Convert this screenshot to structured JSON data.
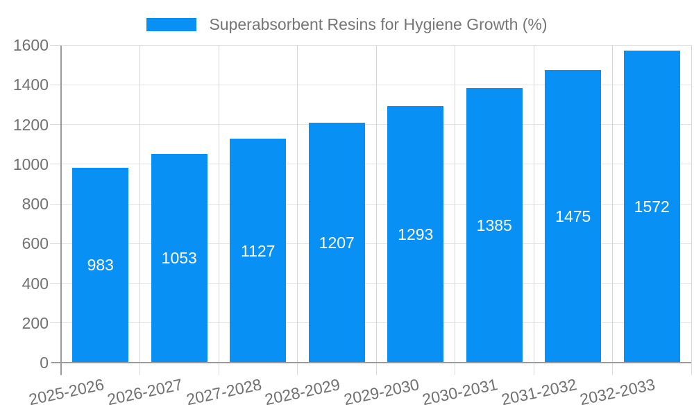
{
  "chart_data": {
    "type": "bar",
    "title": "Superabsorbent Resins for Hygiene Growth (%)",
    "legend_position": "top-center",
    "categories": [
      "2025-2026",
      "2026-2027",
      "2027-2028",
      "2028-2029",
      "2029-2030",
      "2030-2031",
      "2031-2032",
      "2032-2033"
    ],
    "series": [
      {
        "name": "Superabsorbent Resins for Hygiene Growth (%)",
        "values": [
          983,
          1053,
          1127,
          1207,
          1293,
          1385,
          1475,
          1572
        ]
      }
    ],
    "value_label_position": "inside-center",
    "xlabel": "",
    "ylabel": "",
    "ylim": [
      0,
      1600
    ],
    "ytick_step": 200,
    "yticks": [
      0,
      200,
      400,
      600,
      800,
      1000,
      1200,
      1400,
      1600
    ],
    "grid": true,
    "x_label_rotation_deg": -12,
    "colors": {
      "bar": "#0890F5",
      "value_label": "#FFFFFF",
      "axis_text": "#717171",
      "legend_text": "#757575",
      "grid_h": "#E2E2E2",
      "grid_v": "#D6D6D6",
      "tick": "#DBDBDB",
      "axis_line": "#9A9A9A",
      "background": "#FFFFFF"
    }
  }
}
